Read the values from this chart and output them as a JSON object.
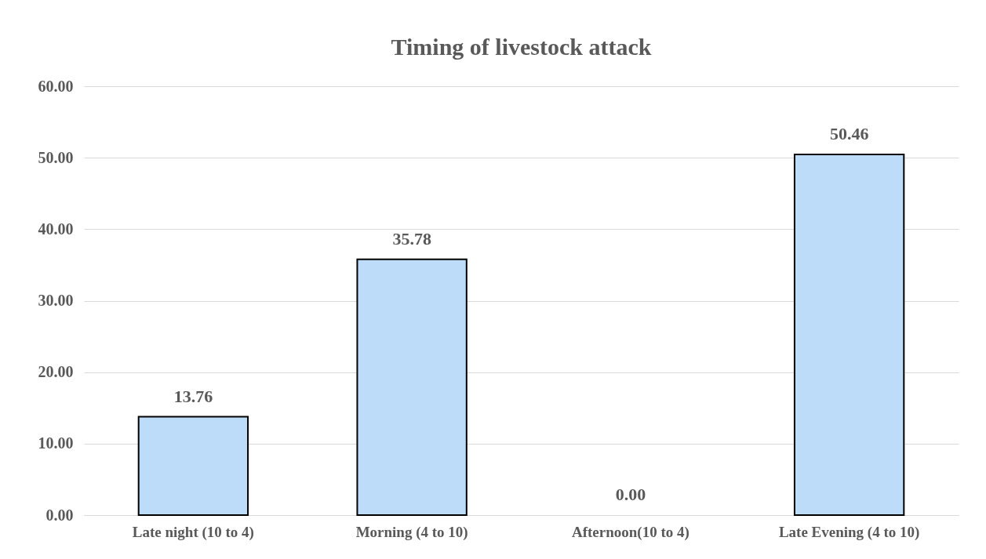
{
  "chart_data": {
    "type": "bar",
    "title": "Timing of livestock attack",
    "categories": [
      "Late night (10 to 4)",
      "Morning (4 to 10)",
      "Afternoon(10 to 4)",
      "Late Evening (4 to 10)"
    ],
    "values": [
      13.76,
      35.78,
      0,
      50.46
    ],
    "value_labels": [
      "13.76",
      "35.78",
      "0.00",
      "50.46"
    ],
    "color": "#bcdcfa",
    "ylim": [
      0,
      60
    ],
    "yticks": [
      {
        "value": 0,
        "label": "0.00"
      },
      {
        "value": 10,
        "label": "10.00"
      },
      {
        "value": 20,
        "label": "20.00"
      },
      {
        "value": 30,
        "label": "30.00"
      },
      {
        "value": 40,
        "label": "40.00"
      },
      {
        "value": 50,
        "label": "50.00"
      },
      {
        "value": 60,
        "label": "60.00"
      }
    ],
    "grid": "y"
  }
}
